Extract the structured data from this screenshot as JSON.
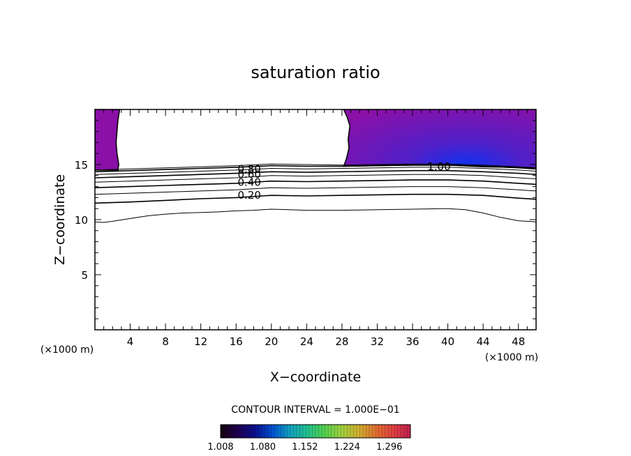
{
  "chart_data": {
    "type": "contour",
    "title": "saturation ratio",
    "xlabel": "X−coordinate",
    "ylabel": "Z−coordinate",
    "x_unit": "(×1000 m)",
    "y_unit": "(×1000 m)",
    "xlim": [
      0,
      50
    ],
    "ylim": [
      0,
      20
    ],
    "x_ticks": [
      4,
      8,
      12,
      16,
      20,
      24,
      28,
      32,
      36,
      40,
      44,
      48
    ],
    "y_ticks": [
      5,
      10,
      15
    ],
    "x_tick_labels": [
      "4",
      "8",
      "12",
      "16",
      "20",
      "24",
      "28",
      "32",
      "36",
      "40",
      "44",
      "48"
    ],
    "y_tick_labels": [
      "5",
      "10",
      "15"
    ],
    "contour_interval_text": "CONTOUR INTERVAL = 1.000E−01",
    "contour_labels": [
      {
        "text": "0.80",
        "x": 17.5,
        "z": 14.6
      },
      {
        "text": "0.60",
        "x": 17.5,
        "z": 14.1
      },
      {
        "text": "0.40",
        "x": 17.5,
        "z": 13.4
      },
      {
        "text": "0.20",
        "x": 17.5,
        "z": 12.2
      },
      {
        "text": "1.00",
        "x": 39,
        "z": 14.8
      }
    ],
    "contours": [
      {
        "level": 0.1,
        "points": [
          [
            0,
            9.8
          ],
          [
            1,
            9.75
          ],
          [
            2,
            9.85
          ],
          [
            4,
            10.1
          ],
          [
            6,
            10.35
          ],
          [
            8,
            10.5
          ],
          [
            10,
            10.6
          ],
          [
            12,
            10.65
          ],
          [
            14,
            10.7
          ],
          [
            16,
            10.8
          ],
          [
            18,
            10.85
          ],
          [
            20,
            10.95
          ],
          [
            22,
            10.9
          ],
          [
            24,
            10.85
          ],
          [
            28,
            10.85
          ],
          [
            32,
            10.9
          ],
          [
            36,
            10.95
          ],
          [
            40,
            11.0
          ],
          [
            42,
            10.9
          ],
          [
            44,
            10.6
          ],
          [
            46,
            10.2
          ],
          [
            48,
            9.9
          ],
          [
            50,
            9.8
          ]
        ]
      },
      {
        "level": 0.2,
        "points": [
          [
            0,
            11.5
          ],
          [
            4,
            11.6
          ],
          [
            8,
            11.75
          ],
          [
            12,
            11.9
          ],
          [
            16,
            12.0
          ],
          [
            20,
            12.2
          ],
          [
            24,
            12.15
          ],
          [
            28,
            12.2
          ],
          [
            32,
            12.25
          ],
          [
            36,
            12.3
          ],
          [
            40,
            12.3
          ],
          [
            44,
            12.2
          ],
          [
            48,
            11.95
          ],
          [
            50,
            11.85
          ]
        ]
      },
      {
        "level": 0.3,
        "points": [
          [
            0,
            12.3
          ],
          [
            4,
            12.4
          ],
          [
            8,
            12.5
          ],
          [
            12,
            12.6
          ],
          [
            16,
            12.7
          ],
          [
            20,
            12.9
          ],
          [
            24,
            12.85
          ],
          [
            28,
            12.9
          ],
          [
            32,
            12.95
          ],
          [
            36,
            13.0
          ],
          [
            40,
            13.0
          ],
          [
            44,
            12.9
          ],
          [
            48,
            12.7
          ],
          [
            50,
            12.6
          ]
        ]
      },
      {
        "level": 0.4,
        "points": [
          [
            0,
            12.9
          ],
          [
            4,
            13.0
          ],
          [
            8,
            13.1
          ],
          [
            12,
            13.2
          ],
          [
            16,
            13.3
          ],
          [
            20,
            13.5
          ],
          [
            24,
            13.45
          ],
          [
            28,
            13.5
          ],
          [
            32,
            13.55
          ],
          [
            36,
            13.6
          ],
          [
            40,
            13.6
          ],
          [
            44,
            13.5
          ],
          [
            48,
            13.3
          ],
          [
            50,
            13.2
          ]
        ]
      },
      {
        "level": 0.5,
        "points": [
          [
            0,
            13.4
          ],
          [
            4,
            13.5
          ],
          [
            8,
            13.6
          ],
          [
            12,
            13.7
          ],
          [
            16,
            13.8
          ],
          [
            20,
            14.0
          ],
          [
            24,
            13.95
          ],
          [
            28,
            14.0
          ],
          [
            32,
            14.05
          ],
          [
            36,
            14.1
          ],
          [
            40,
            14.1
          ],
          [
            44,
            14.0
          ],
          [
            48,
            13.8
          ],
          [
            50,
            13.7
          ]
        ]
      },
      {
        "level": 0.6,
        "points": [
          [
            0,
            13.8
          ],
          [
            4,
            13.9
          ],
          [
            8,
            14.0
          ],
          [
            12,
            14.1
          ],
          [
            16,
            14.2
          ],
          [
            20,
            14.35
          ],
          [
            24,
            14.3
          ],
          [
            28,
            14.35
          ],
          [
            32,
            14.4
          ],
          [
            36,
            14.45
          ],
          [
            40,
            14.45
          ],
          [
            44,
            14.35
          ],
          [
            48,
            14.2
          ],
          [
            50,
            14.1
          ]
        ]
      },
      {
        "level": 0.7,
        "points": [
          [
            0,
            14.1
          ],
          [
            4,
            14.2
          ],
          [
            8,
            14.3
          ],
          [
            12,
            14.4
          ],
          [
            16,
            14.5
          ],
          [
            20,
            14.65
          ],
          [
            24,
            14.6
          ],
          [
            28,
            14.65
          ],
          [
            32,
            14.7
          ],
          [
            36,
            14.75
          ],
          [
            40,
            14.75
          ],
          [
            44,
            14.65
          ],
          [
            48,
            14.5
          ],
          [
            50,
            14.4
          ]
        ]
      },
      {
        "level": 0.8,
        "points": [
          [
            0,
            14.35
          ],
          [
            4,
            14.45
          ],
          [
            8,
            14.55
          ],
          [
            12,
            14.65
          ],
          [
            16,
            14.75
          ],
          [
            20,
            14.9
          ],
          [
            24,
            14.85
          ],
          [
            28,
            14.85
          ],
          [
            32,
            14.9
          ],
          [
            36,
            14.95
          ],
          [
            40,
            14.95
          ],
          [
            44,
            14.85
          ],
          [
            48,
            14.7
          ],
          [
            50,
            14.6
          ]
        ]
      },
      {
        "level": 0.9,
        "points": [
          [
            0,
            14.5
          ],
          [
            4,
            14.6
          ],
          [
            8,
            14.7
          ],
          [
            12,
            14.8
          ],
          [
            16,
            14.9
          ],
          [
            20,
            15.05
          ],
          [
            24,
            15.0
          ],
          [
            28,
            14.95
          ],
          [
            32,
            15.0
          ],
          [
            36,
            15.05
          ],
          [
            40,
            15.05
          ],
          [
            44,
            14.95
          ],
          [
            48,
            14.8
          ],
          [
            50,
            14.7
          ]
        ]
      }
    ],
    "supersaturated_regions": [
      {
        "points": [
          [
            0,
            20
          ],
          [
            2.8,
            20
          ],
          [
            2.6,
            19
          ],
          [
            2.5,
            18
          ],
          [
            2.4,
            17
          ],
          [
            2.5,
            16
          ],
          [
            2.7,
            15
          ],
          [
            2.6,
            14.5
          ],
          [
            0,
            14.5
          ]
        ]
      },
      {
        "points": [
          [
            28.2,
            20
          ],
          [
            50,
            20
          ],
          [
            50,
            14.7
          ],
          [
            44,
            14.8
          ],
          [
            40,
            14.95
          ],
          [
            36,
            14.95
          ],
          [
            32,
            14.9
          ],
          [
            28.2,
            14.85
          ],
          [
            28.5,
            15.5
          ],
          [
            28.8,
            16.5
          ],
          [
            28.7,
            17.3
          ],
          [
            28.9,
            18.5
          ],
          [
            28.6,
            19.3
          ]
        ]
      }
    ],
    "supersaturation_peak": {
      "x": 42,
      "z": 15
    },
    "colorbar": {
      "min": 1.008,
      "max": 1.332,
      "tick_labels": [
        "1.008",
        "1.080",
        "1.152",
        "1.224",
        "1.296"
      ],
      "colors": [
        "#160010",
        "#200050",
        "#0a1090",
        "#0050d0",
        "#10a0c0",
        "#20c090",
        "#50d050",
        "#a0d040",
        "#d0b030",
        "#e07030",
        "#e04040",
        "#c02050"
      ]
    },
    "fill_colors": {
      "outer": "#8a10a8",
      "inner": "#1030f0"
    }
  }
}
